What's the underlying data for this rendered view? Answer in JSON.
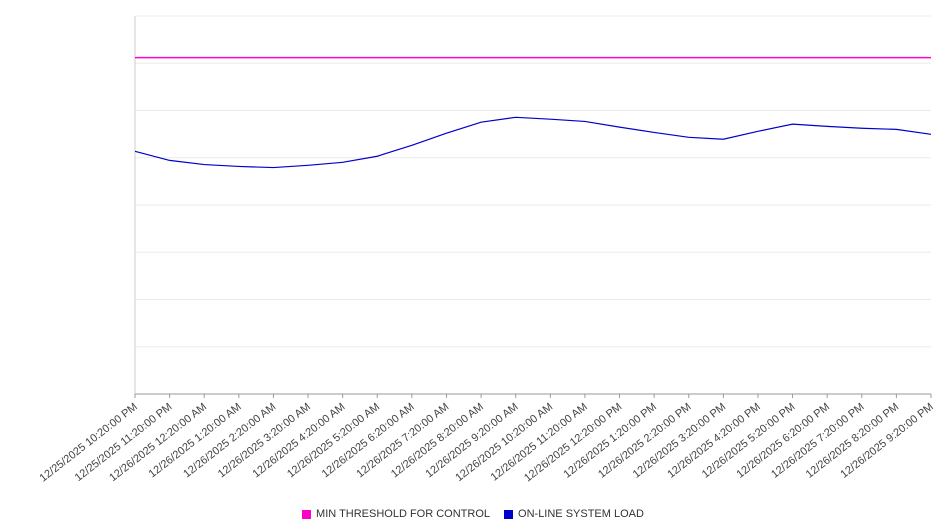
{
  "chart_data": {
    "type": "line",
    "title": "",
    "xlabel": "",
    "ylabel": "",
    "ylim": [
      0,
      100
    ],
    "grid": true,
    "legend_position": "bottom",
    "x": [
      "12/25/2025 10:20:00 PM",
      "12/25/2025 11:20:00 PM",
      "12/26/2025 12:20:00 AM",
      "12/26/2025 1:20:00 AM",
      "12/26/2025 2:20:00 AM",
      "12/26/2025 3:20:00 AM",
      "12/26/2025 4:20:00 AM",
      "12/26/2025 5:20:00 AM",
      "12/26/2025 6:20:00 AM",
      "12/26/2025 7:20:00 AM",
      "12/26/2025 8:20:00 AM",
      "12/26/2025 9:20:00 AM",
      "12/26/2025 10:20:00 AM",
      "12/26/2025 11:20:00 AM",
      "12/26/2025 12:20:00 PM",
      "12/26/2025 1:20:00 PM",
      "12/26/2025 2:20:00 PM",
      "12/26/2025 3:20:00 PM",
      "12/26/2025 4:20:00 PM",
      "12/26/2025 5:20:00 PM",
      "12/26/2025 6:20:00 PM",
      "12/26/2025 7:20:00 PM",
      "12/26/2025 8:20:00 PM",
      "12/26/2025 9:20:00 PM"
    ],
    "series": [
      {
        "name": "MIN THRESHOLD FOR CONTROL",
        "color": "#ff00cc",
        "values": [
          89,
          89,
          89,
          89,
          89,
          89,
          89,
          89,
          89,
          89,
          89,
          89,
          89,
          89,
          89,
          89,
          89,
          89,
          89,
          89,
          89,
          89,
          89,
          89
        ]
      },
      {
        "name": "ON-LINE SYSTEM LOAD",
        "color": "#0000cc",
        "values": [
          64.2,
          61.8,
          60.7,
          60.2,
          59.9,
          60.5,
          61.3,
          62.9,
          65.8,
          69.0,
          71.9,
          73.2,
          72.7,
          72.1,
          70.6,
          69.2,
          67.9,
          67.4,
          69.5,
          71.4,
          70.8,
          70.3,
          70.0,
          68.7
        ]
      }
    ]
  },
  "style": {
    "grid_color": "#ebebeb",
    "axis_color": "#999999",
    "y_axis_line_color": "#cccccc",
    "tick_color": "#999999",
    "label_color": "#444444"
  }
}
